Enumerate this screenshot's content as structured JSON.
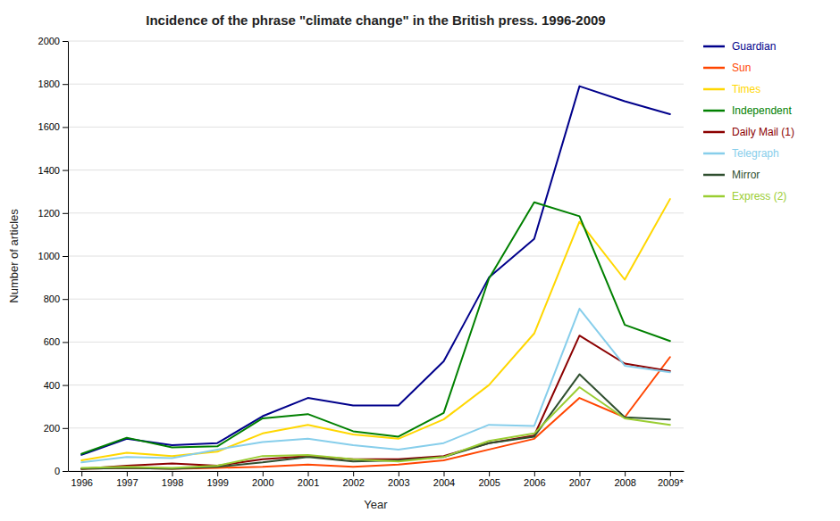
{
  "chart_data": {
    "type": "line",
    "title": "Incidence of the phrase \"climate change\" in the British press. 1996-2009",
    "xlabel": "Year",
    "ylabel": "Number of articles",
    "categories": [
      "1996",
      "1997",
      "1998",
      "1999",
      "2000",
      "2001",
      "2002",
      "2003",
      "2004",
      "2005",
      "2006",
      "2007",
      "2008",
      "2009*"
    ],
    "series": [
      {
        "name": "Guardian",
        "color": "#00008B",
        "values": [
          75,
          150,
          120,
          130,
          255,
          340,
          305,
          305,
          510,
          900,
          1080,
          1790,
          1720,
          1660
        ]
      },
      {
        "name": "Sun",
        "color": "#FF4500",
        "values": [
          10,
          15,
          10,
          15,
          20,
          30,
          20,
          30,
          50,
          100,
          150,
          340,
          250,
          530
        ]
      },
      {
        "name": "Times",
        "color": "#FFD700",
        "values": [
          50,
          85,
          70,
          90,
          175,
          215,
          170,
          150,
          240,
          400,
          640,
          1160,
          890,
          1265
        ]
      },
      {
        "name": "Independent",
        "color": "#008000",
        "values": [
          80,
          155,
          110,
          115,
          245,
          265,
          185,
          160,
          270,
          895,
          1250,
          1185,
          680,
          605
        ]
      },
      {
        "name": "Daily Mail (1)",
        "color": "#8B0000",
        "values": [
          10,
          25,
          35,
          25,
          55,
          70,
          55,
          55,
          70,
          130,
          165,
          630,
          500,
          465
        ]
      },
      {
        "name": "Telegraph",
        "color": "#87CEEB",
        "values": [
          40,
          65,
          60,
          100,
          135,
          150,
          120,
          100,
          130,
          215,
          210,
          755,
          490,
          460
        ]
      },
      {
        "name": "Mirror",
        "color": "#2F4F2F",
        "values": [
          10,
          15,
          10,
          20,
          40,
          65,
          45,
          50,
          65,
          130,
          160,
          450,
          250,
          240
        ]
      },
      {
        "name": "Express (2)",
        "color": "#9ACD32",
        "values": [
          15,
          20,
          15,
          25,
          70,
          75,
          55,
          45,
          65,
          140,
          175,
          390,
          245,
          215
        ]
      }
    ],
    "ylim": [
      0,
      2000
    ],
    "yticks": [
      0,
      200,
      400,
      600,
      800,
      1000,
      1200,
      1400,
      1600,
      1800,
      2000
    ],
    "grid": true,
    "legend": "right"
  }
}
